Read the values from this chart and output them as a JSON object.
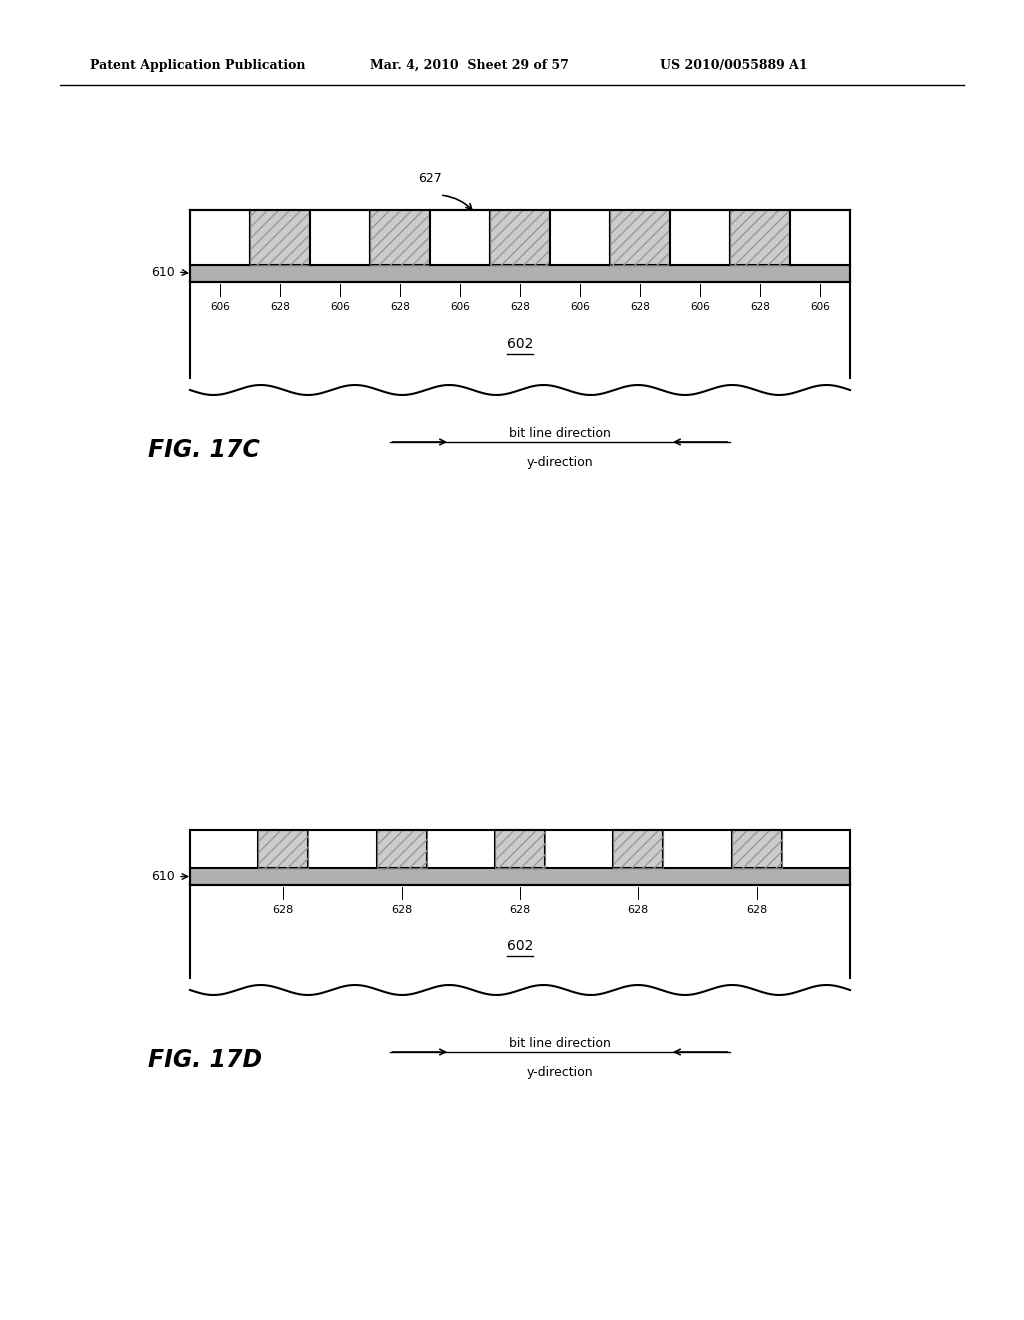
{
  "header_left": "Patent Application Publication",
  "header_mid": "Mar. 4, 2010  Sheet 29 of 57",
  "header_right": "US 2010/0055889 A1",
  "fig_c_label": "FIG. 17C",
  "fig_d_label": "FIG. 17D",
  "direction_line1": "bit line direction",
  "direction_line2": "y-direction",
  "label_627": "627",
  "label_610_c": "610",
  "label_602_c": "602",
  "label_610_d": "610",
  "label_602_d": "602",
  "fig_c_labels_bottom": [
    "606",
    "628",
    "606",
    "628",
    "606",
    "628",
    "606",
    "628",
    "606",
    "628",
    "606"
  ],
  "fig_d_labels_bottom": [
    "628",
    "628",
    "628",
    "628",
    "628"
  ],
  "bg_color": "#ffffff",
  "line_color": "#000000"
}
